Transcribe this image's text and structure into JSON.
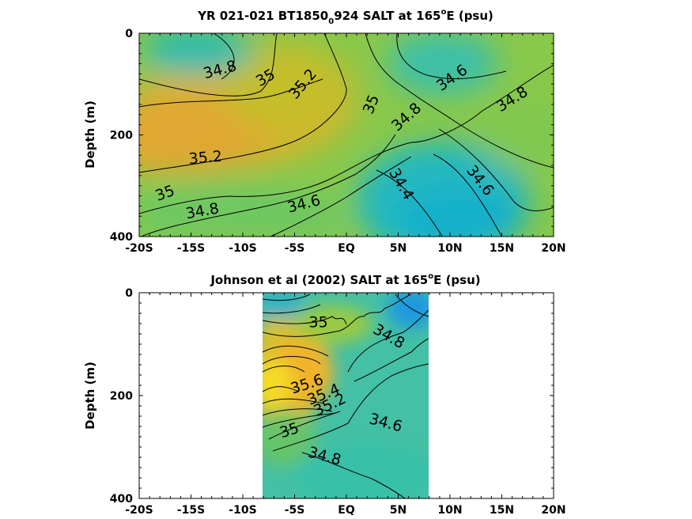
{
  "chart_data": [
    {
      "type": "contour",
      "title": "YR 021-021 BT1850",
      "title_sub": "0",
      "title_mid": "924 SALT at 165",
      "title_sup": "o",
      "title_end": "E (psu)",
      "ylabel": "Depth (m)",
      "xlim": [
        -20,
        20
      ],
      "ylim": [
        0,
        400
      ],
      "y_reversed": true,
      "x_ticks": [
        -20,
        -15,
        -10,
        -5,
        0,
        5,
        10,
        15,
        20
      ],
      "x_tick_labels": [
        "-20S",
        "-15S",
        "-10S",
        "-5S",
        "EQ",
        "5N",
        "10N",
        "15N",
        "20N"
      ],
      "y_ticks": [
        0,
        200,
        400
      ],
      "y_tick_labels": [
        "0",
        "200",
        "400"
      ],
      "contour_labels": [
        {
          "text": "34.8",
          "lat": -12.2,
          "depth": 72,
          "angle": -15
        },
        {
          "text": "35",
          "lat": -7.8,
          "depth": 88,
          "angle": -30
        },
        {
          "text": "35.2",
          "lat": -4.2,
          "depth": 100,
          "angle": -50
        },
        {
          "text": "35",
          "lat": 2.4,
          "depth": 140,
          "angle": -68
        },
        {
          "text": "34.8",
          "lat": 5.8,
          "depth": 165,
          "angle": -42
        },
        {
          "text": "34.6",
          "lat": 10.2,
          "depth": 88,
          "angle": -35
        },
        {
          "text": "34.8",
          "lat": 16.0,
          "depth": 130,
          "angle": -32
        },
        {
          "text": "35.2",
          "lat": -13.6,
          "depth": 245,
          "angle": -5
        },
        {
          "text": "35",
          "lat": -17.5,
          "depth": 315,
          "angle": -20
        },
        {
          "text": "34.8",
          "lat": -13.9,
          "depth": 350,
          "angle": -10
        },
        {
          "text": "34.6",
          "lat": -4.1,
          "depth": 336,
          "angle": -14
        },
        {
          "text": "34.4",
          "lat": 5.3,
          "depth": 297,
          "angle": 60
        },
        {
          "text": "34.6",
          "lat": 12.9,
          "depth": 290,
          "angle": 52
        }
      ]
    },
    {
      "type": "contour",
      "title": "Johnson et al (2002) SALT at 165",
      "title_sup": "o",
      "title_end": "E (psu)",
      "ylabel": "Depth (m)",
      "xlim": [
        -20,
        20
      ],
      "ylim": [
        0,
        400
      ],
      "y_reversed": true,
      "data_lat_range": [
        -8,
        8
      ],
      "x_ticks": [
        -20,
        -15,
        -10,
        -5,
        0,
        5,
        10,
        15,
        20
      ],
      "x_tick_labels": [
        "-20S",
        "-15S",
        "-10S",
        "-5S",
        "EQ",
        "5N",
        "10N",
        "15N",
        "20N"
      ],
      "y_ticks": [
        0,
        200,
        400
      ],
      "y_tick_labels": [
        "0",
        "200",
        "400"
      ],
      "contour_labels": [
        {
          "text": "35",
          "lat": -2.7,
          "depth": 58,
          "angle": 0
        },
        {
          "text": "34.8",
          "lat": 4.1,
          "depth": 85,
          "angle": 30
        },
        {
          "text": "35.6",
          "lat": -3.8,
          "depth": 178,
          "angle": -18
        },
        {
          "text": "35.4",
          "lat": -2.2,
          "depth": 198,
          "angle": -22
        },
        {
          "text": "35.2",
          "lat": -1.6,
          "depth": 218,
          "angle": -25
        },
        {
          "text": "35",
          "lat": -5.5,
          "depth": 268,
          "angle": -18
        },
        {
          "text": "34.6",
          "lat": 3.8,
          "depth": 253,
          "angle": 15
        },
        {
          "text": "34.8",
          "lat": -2.1,
          "depth": 318,
          "angle": 15
        }
      ]
    }
  ]
}
